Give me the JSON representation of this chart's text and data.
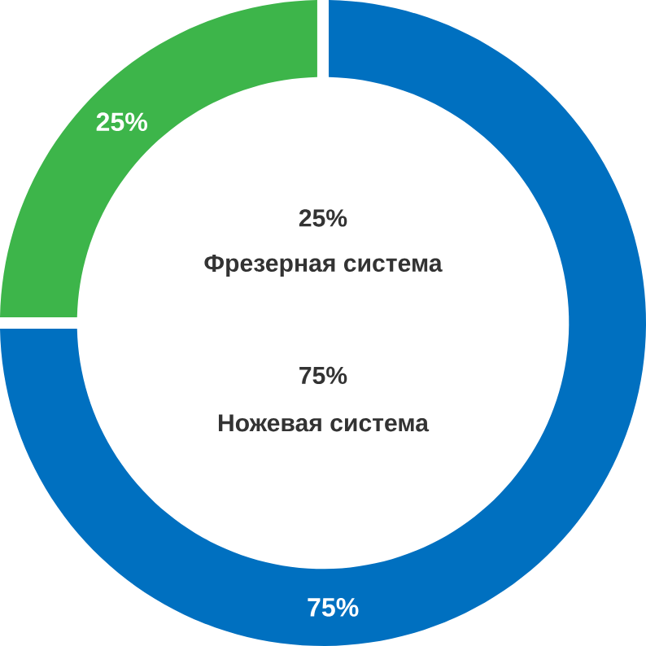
{
  "chart_data": {
    "type": "donut",
    "categories": [
      "Фрезерная система",
      "Ножевая система"
    ],
    "values": [
      25,
      75
    ],
    "colors": [
      "#3db54a",
      "#0070c0"
    ],
    "value_labels": [
      "25%",
      "75%"
    ],
    "data_labels": true
  }
}
